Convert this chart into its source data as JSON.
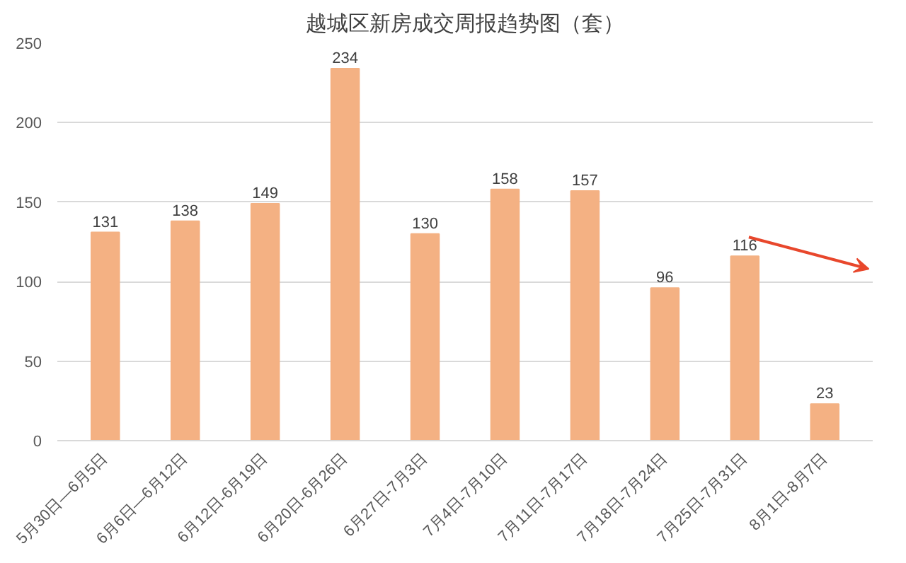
{
  "chart_data": {
    "type": "bar",
    "title": "越城区新房成交周报趋势图（套）",
    "categories": [
      "5月30日—6月5日",
      "6月6日—6月12日",
      "6月12日-6月19日",
      "6月20日-6月26日",
      "6月27日-7月3日",
      "7月4日-7月10日",
      "7月11日-7月17日",
      "7月18日-7月24日",
      "7月25日-7月31日",
      "8月1日-8月7日"
    ],
    "values": [
      131,
      138,
      149,
      234,
      130,
      158,
      157,
      96,
      116,
      23
    ],
    "color": "#f4b183",
    "ylim": [
      0,
      250
    ],
    "yticks": [
      0,
      50,
      100,
      150,
      200,
      250
    ],
    "grid": "y",
    "data_labels": true
  }
}
